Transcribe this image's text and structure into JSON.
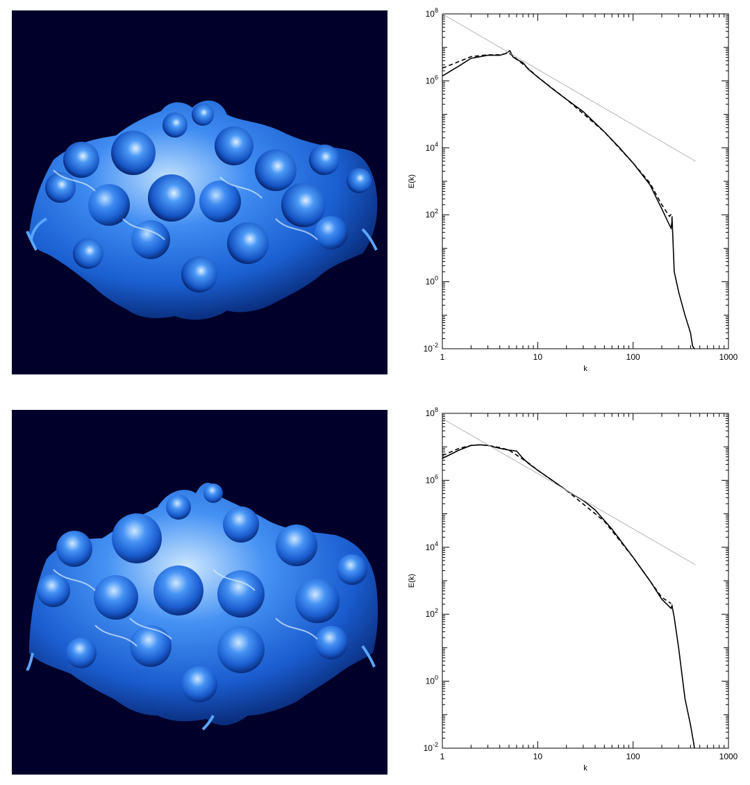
{
  "figure": {
    "render_images": [
      {
        "description_icon": "turbulent-fluid-volume-rendering",
        "background": "#00002a",
        "accent": "#2f7df0"
      },
      {
        "description_icon": "turbulent-fluid-volume-rendering",
        "background": "#00002a",
        "accent": "#2f7df0"
      }
    ]
  },
  "chart_data": [
    {
      "type": "line",
      "title": "",
      "xlabel": "k",
      "ylabel": "E(k)",
      "xscale": "log",
      "yscale": "log",
      "xlim": [
        1,
        1000
      ],
      "ylim": [
        0.01,
        100000000
      ],
      "xticks": [
        "1",
        "10",
        "100",
        "1000"
      ],
      "yticks": [
        {
          "base": "10",
          "exp": "-2",
          "value": 0.01
        },
        {
          "base": "10",
          "exp": "0",
          "value": 1
        },
        {
          "base": "10",
          "exp": "2",
          "value": 100
        },
        {
          "base": "10",
          "exp": "4",
          "value": 10000
        },
        {
          "base": "10",
          "exp": "6",
          "value": 1000000
        },
        {
          "base": "10",
          "exp": "8",
          "value": 100000000
        }
      ],
      "grid": false,
      "series": [
        {
          "style": "solid",
          "color": "#000000",
          "x": [
            1,
            1.5,
            2,
            3,
            4,
            4.6,
            5.1,
            5.5,
            6,
            7,
            8,
            10,
            15,
            20,
            30,
            50,
            70,
            100,
            150,
            200,
            240,
            250,
            255,
            256,
            270,
            300,
            350,
            400,
            420,
            440
          ],
          "y": [
            1400000,
            2800000,
            4700000,
            5800000,
            5800000,
            6500000,
            8000000,
            5200000,
            4400000,
            3500000,
            2200000,
            1300000,
            520000,
            280000,
            120000,
            30000,
            11000,
            3500,
            800,
            150,
            50,
            40,
            60,
            90,
            2,
            0.5,
            0.1,
            0.03,
            0.012,
            0.01
          ]
        },
        {
          "style": "dashed",
          "color": "#000000",
          "x": [
            1,
            1.5,
            2,
            3,
            4,
            5,
            6,
            8,
            10,
            20,
            50,
            100,
            150,
            200,
            240,
            256
          ],
          "y": [
            2400000,
            3800000,
            5300000,
            6000000,
            6000000,
            6800000,
            4500000,
            2300000,
            1300000,
            280000,
            30000,
            3500,
            900,
            200,
            90,
            110
          ]
        },
        {
          "style": "solid",
          "color": "#b0b0b0",
          "x": [
            1,
            450
          ],
          "y": [
            100000000,
            4000
          ]
        }
      ]
    },
    {
      "type": "line",
      "title": "",
      "xlabel": "k",
      "ylabel": "E(k)",
      "xscale": "log",
      "yscale": "log",
      "xlim": [
        1,
        1000
      ],
      "ylim": [
        0.01,
        100000000
      ],
      "xticks": [
        "1",
        "10",
        "100",
        "1000"
      ],
      "yticks": [
        {
          "base": "10",
          "exp": "-2",
          "value": 0.01
        },
        {
          "base": "10",
          "exp": "0",
          "value": 1
        },
        {
          "base": "10",
          "exp": "2",
          "value": 100
        },
        {
          "base": "10",
          "exp": "4",
          "value": 10000
        },
        {
          "base": "10",
          "exp": "6",
          "value": 1000000
        },
        {
          "base": "10",
          "exp": "8",
          "value": 100000000
        }
      ],
      "grid": false,
      "series": [
        {
          "style": "solid",
          "color": "#000000",
          "x": [
            1,
            1.5,
            2,
            2.5,
            3,
            4,
            5,
            6,
            7,
            8,
            10,
            15,
            20,
            30,
            40,
            60,
            100,
            150,
            200,
            250,
            256,
            270,
            300,
            350,
            400,
            430,
            440
          ],
          "y": [
            4500000,
            8000000,
            11000000,
            11500000,
            11000000,
            9000000,
            8000000,
            7500000,
            4500000,
            3200000,
            2000000,
            900000,
            500000,
            250000,
            130000,
            35000,
            5000,
            1000,
            280,
            150,
            180,
            80,
            10,
            0.3,
            0.05,
            0.015,
            0.01
          ]
        },
        {
          "style": "dashed",
          "color": "#000000",
          "x": [
            1,
            1.5,
            2,
            2.5,
            3,
            4,
            5,
            8,
            10,
            20,
            50,
            100,
            150,
            200,
            250
          ],
          "y": [
            5500000,
            9000000,
            11000000,
            11500000,
            11000000,
            9500000,
            8000000,
            3300000,
            2000000,
            500000,
            60000,
            5000,
            1000,
            320,
            210
          ]
        },
        {
          "style": "solid",
          "color": "#b0b0b0",
          "x": [
            1,
            450
          ],
          "y": [
            70000000,
            3000
          ]
        }
      ]
    }
  ]
}
